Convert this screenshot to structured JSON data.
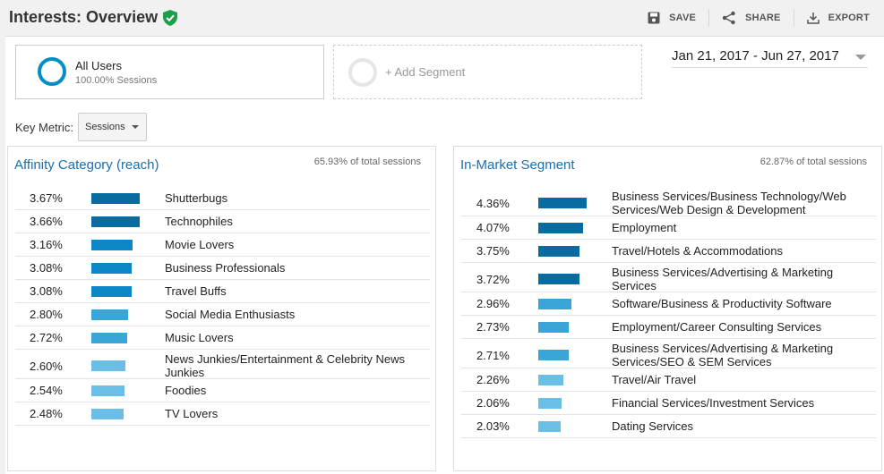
{
  "header": {
    "title": "Interests: Overview",
    "save_label": "SAVE",
    "share_label": "SHARE",
    "export_label": "EXPORT"
  },
  "segments": {
    "primary_name": "All Users",
    "primary_sub": "100.00% Sessions",
    "add_label": "+ Add Segment"
  },
  "date_range": "Jan 21, 2017 - Jun 27, 2017",
  "key_metric": {
    "label": "Key Metric:",
    "selected": "Sessions"
  },
  "colors": {
    "accent": "#058dc7",
    "bar_dark": "#0a6b9e",
    "bar_mid": "#0d86c6",
    "bar_light": "#3aa6d8",
    "bar_lighter": "#6bbfe6",
    "verified": "#1e9e4a"
  },
  "affinity": {
    "title": "Affinity Category (reach)",
    "total": "65.93% of total sessions",
    "rows": [
      {
        "pct": "3.67%",
        "value": 3.67,
        "label": "Shutterbugs"
      },
      {
        "pct": "3.66%",
        "value": 3.66,
        "label": "Technophiles"
      },
      {
        "pct": "3.16%",
        "value": 3.16,
        "label": "Movie Lovers"
      },
      {
        "pct": "3.08%",
        "value": 3.08,
        "label": "Business Professionals"
      },
      {
        "pct": "3.08%",
        "value": 3.08,
        "label": "Travel Buffs"
      },
      {
        "pct": "2.80%",
        "value": 2.8,
        "label": "Social Media Enthusiasts"
      },
      {
        "pct": "2.72%",
        "value": 2.72,
        "label": "Music Lovers"
      },
      {
        "pct": "2.60%",
        "value": 2.6,
        "label": "News Junkies/Entertainment & Celebrity News Junkies"
      },
      {
        "pct": "2.54%",
        "value": 2.54,
        "label": "Foodies"
      },
      {
        "pct": "2.48%",
        "value": 2.48,
        "label": "TV Lovers"
      }
    ]
  },
  "inmarket": {
    "title": "In-Market Segment",
    "total": "62.87% of total sessions",
    "rows": [
      {
        "pct": "4.36%",
        "value": 4.36,
        "label": "Business Services/Business Technology/Web Services/Web Design & Development"
      },
      {
        "pct": "4.07%",
        "value": 4.07,
        "label": "Employment"
      },
      {
        "pct": "3.75%",
        "value": 3.75,
        "label": "Travel/Hotels & Accommodations"
      },
      {
        "pct": "3.72%",
        "value": 3.72,
        "label": "Business Services/Advertising & Marketing Services"
      },
      {
        "pct": "2.96%",
        "value": 2.96,
        "label": "Software/Business & Productivity Software"
      },
      {
        "pct": "2.73%",
        "value": 2.73,
        "label": "Employment/Career Consulting Services"
      },
      {
        "pct": "2.71%",
        "value": 2.71,
        "label": "Business Services/Advertising & Marketing Services/SEO & SEM Services"
      },
      {
        "pct": "2.26%",
        "value": 2.26,
        "label": "Travel/Air Travel"
      },
      {
        "pct": "2.06%",
        "value": 2.06,
        "label": "Financial Services/Investment Services"
      },
      {
        "pct": "2.03%",
        "value": 2.03,
        "label": "Dating Services"
      }
    ]
  }
}
